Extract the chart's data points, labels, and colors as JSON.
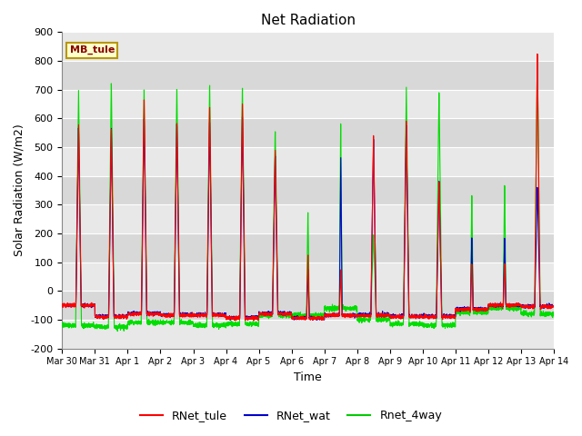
{
  "title": "Net Radiation",
  "xlabel": "Time",
  "ylabel": "Solar Radiation (W/m2)",
  "ylim": [
    -200,
    900
  ],
  "yticks": [
    -200,
    -100,
    0,
    100,
    200,
    300,
    400,
    500,
    600,
    700,
    800,
    900
  ],
  "annotation_text": "MB_tule",
  "annotation_bg": "#ffffcc",
  "annotation_border": "#b8960c",
  "fig_bg": "#ffffff",
  "plot_bg": "#e8e8e8",
  "band_colors": [
    "#e8e8e8",
    "#d8d8d8"
  ],
  "legend_entries": [
    "RNet_tule",
    "RNet_wat",
    "Rnet_4way"
  ],
  "legend_colors": [
    "#ff0000",
    "#0000cc",
    "#00cc00"
  ],
  "line_colors": {
    "RNet_tule": "#ff0000",
    "RNet_wat": "#0000cc",
    "Rnet_4way": "#00dd00"
  },
  "x_tick_labels": [
    "Mar 30",
    "Mar 31",
    "Apr 1",
    "Apr 2",
    "Apr 3",
    "Apr 4",
    "Apr 5",
    "Apr 6",
    "Apr 7",
    "Apr 8",
    "Apr 9",
    "Apr 10",
    "Apr 11",
    "Apr 12",
    "Apr 13",
    "Apr 14"
  ],
  "x_tick_positions": [
    0,
    1,
    2,
    3,
    4,
    5,
    6,
    7,
    8,
    9,
    10,
    11,
    12,
    13,
    14,
    15
  ],
  "num_days": 15,
  "points_per_day": 288
}
